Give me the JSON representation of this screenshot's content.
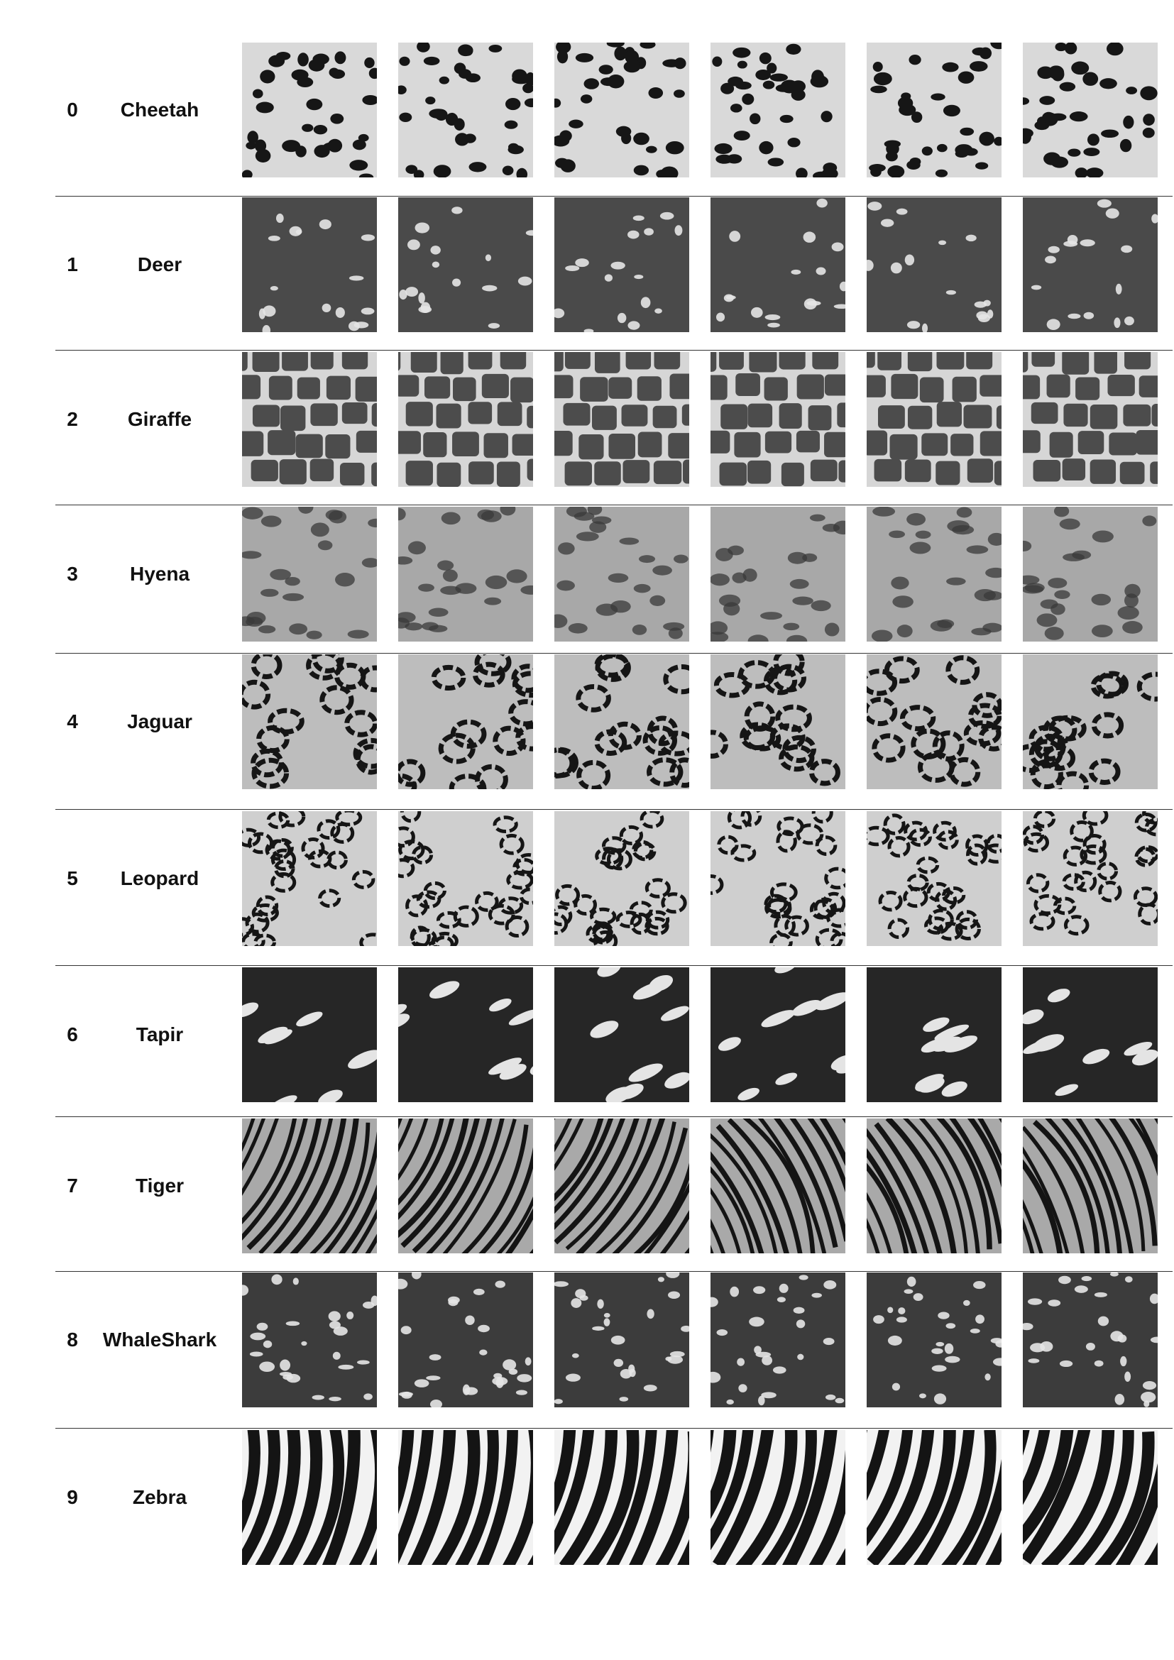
{
  "rows": [
    {
      "index": "0",
      "name": "Cheetah",
      "pattern": "spots"
    },
    {
      "index": "1",
      "name": "Deer",
      "pattern": "dapples"
    },
    {
      "index": "2",
      "name": "Giraffe",
      "pattern": "reticulated"
    },
    {
      "index": "3",
      "name": "Hyena",
      "pattern": "blotches"
    },
    {
      "index": "4",
      "name": "Jaguar",
      "pattern": "rosettes"
    },
    {
      "index": "5",
      "name": "Leopard",
      "pattern": "rosettes-small"
    },
    {
      "index": "6",
      "name": "Tapir",
      "pattern": "streaks"
    },
    {
      "index": "7",
      "name": "Tiger",
      "pattern": "stripes-thin"
    },
    {
      "index": "8",
      "name": "WhaleShark",
      "pattern": "dots-dark"
    },
    {
      "index": "9",
      "name": "Zebra",
      "pattern": "stripes-bold"
    }
  ],
  "images_per_row": 6,
  "colors": {
    "background": "#ffffff",
    "text": "#111111",
    "divider": "#333333"
  }
}
